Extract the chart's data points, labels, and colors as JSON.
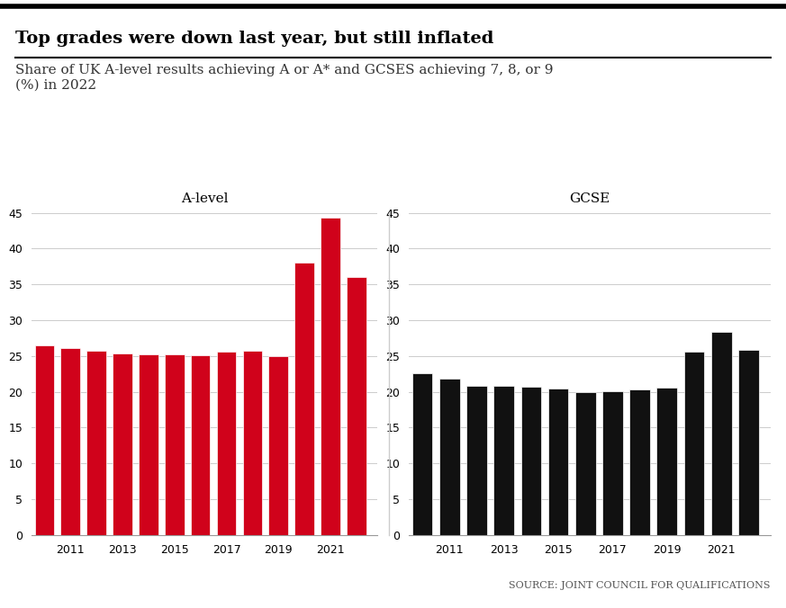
{
  "title": "Top grades were down last year, but still inflated",
  "subtitle": "Share of UK A-level results achieving A or A* and GCSES achieving 7, 8, or 9\n(%) in 2022",
  "source": "SOURCE: JOINT COUNCIL FOR QUALIFICATIONS",
  "alevel_label": "A-level",
  "gcse_label": "GCSE",
  "alevel_years": [
    2010,
    2011,
    2012,
    2013,
    2014,
    2015,
    2016,
    2017,
    2018,
    2019,
    2020,
    2021,
    2022
  ],
  "alevel_values": [
    26.5,
    26.1,
    25.7,
    25.3,
    25.2,
    25.2,
    25.1,
    25.6,
    25.7,
    25.0,
    38.1,
    44.3,
    36.0
  ],
  "gcse_years": [
    2010,
    2011,
    2012,
    2013,
    2014,
    2015,
    2016,
    2017,
    2018,
    2019,
    2020,
    2021,
    2022
  ],
  "gcse_values": [
    22.6,
    21.9,
    20.8,
    20.8,
    20.7,
    20.5,
    20.0,
    20.1,
    20.3,
    20.6,
    25.6,
    28.4,
    25.8
  ],
  "alevel_color": "#d0021b",
  "gcse_color": "#111111",
  "ylim": [
    0,
    45
  ],
  "yticks": [
    0,
    5,
    10,
    15,
    20,
    25,
    30,
    35,
    40,
    45
  ],
  "xtick_labels": [
    "2011",
    "2013",
    "2015",
    "2017",
    "2019",
    "2021"
  ],
  "xtick_positions": [
    2011,
    2013,
    2015,
    2017,
    2019,
    2021
  ],
  "bg_color": "#ffffff",
  "title_fontsize": 14,
  "subtitle_fontsize": 11,
  "axis_label_fontsize": 9,
  "source_fontsize": 8,
  "bar_width": 0.75
}
